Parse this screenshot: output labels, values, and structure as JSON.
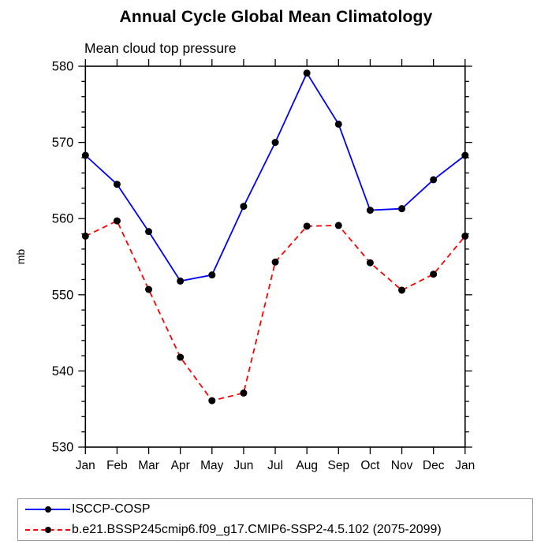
{
  "header": {
    "title": "Annual Cycle Global Mean Climatology",
    "subtitle": "Mean cloud top pressure"
  },
  "axes": {
    "ylabel": "mb",
    "y_tick_labels": [
      "530",
      "540",
      "550",
      "560",
      "570",
      "580"
    ],
    "x_tick_labels": [
      "Jan",
      "Feb",
      "Mar",
      "Apr",
      "May",
      "Jun",
      "Jul",
      "Aug",
      "Sep",
      "Oct",
      "Nov",
      "Dec",
      "Jan"
    ]
  },
  "colors": {
    "series1": "#0000ff",
    "series2": "#ff0000",
    "marker": "#000000",
    "axis": "#000000",
    "legend_border": "#999999"
  },
  "chart_data": {
    "type": "line",
    "title": "Annual Cycle Global Mean Climatology",
    "subtitle": "Mean cloud top pressure",
    "xlabel": "",
    "ylabel": "mb",
    "categories": [
      "Jan",
      "Feb",
      "Mar",
      "Apr",
      "May",
      "Jun",
      "Jul",
      "Aug",
      "Sep",
      "Oct",
      "Nov",
      "Dec",
      "Jan"
    ],
    "ylim": [
      530,
      580
    ],
    "ytick_major_step": 10,
    "ytick_minor_step": 2,
    "grid": false,
    "legend_position": "bottom",
    "series": [
      {
        "name": "ISCCP-COSP",
        "color": "#0000ff",
        "line_style": "solid",
        "marker": "circle",
        "marker_color": "#000000",
        "values": [
          568.3,
          564.5,
          558.3,
          551.8,
          552.6,
          561.6,
          570.0,
          579.1,
          572.4,
          561.1,
          561.3,
          565.1,
          568.3
        ]
      },
      {
        "name": "b.e21.BSSP245cmip6.f09_g17.CMIP6-SSP2-4.5.102 (2075-2099)",
        "color": "#ff0000",
        "line_style": "dashed",
        "marker": "circle",
        "marker_color": "#000000",
        "values": [
          557.7,
          559.7,
          550.7,
          541.8,
          536.1,
          537.1,
          554.3,
          559.0,
          559.1,
          554.2,
          550.6,
          552.7,
          557.7
        ]
      }
    ]
  }
}
